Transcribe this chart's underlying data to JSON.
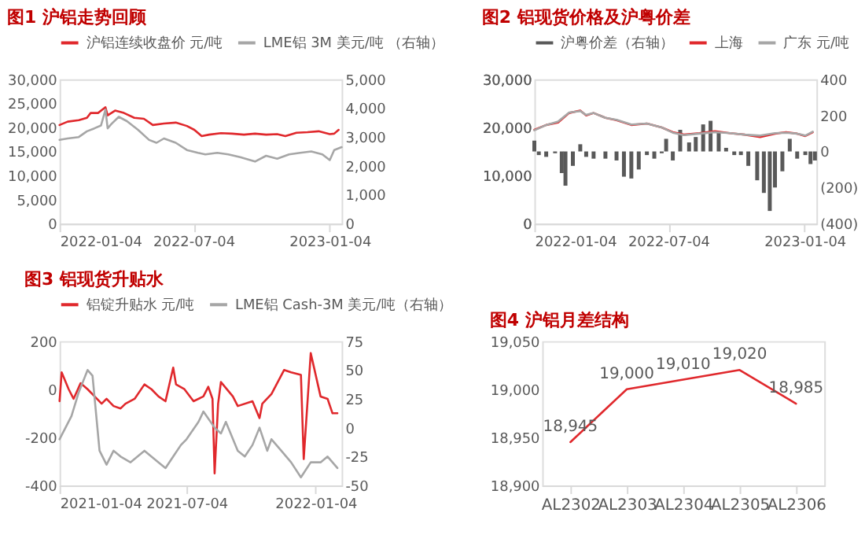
{
  "chart_data": [
    {
      "type": "line",
      "title": "图1  沪铝走势回顾",
      "legend": "top",
      "xlim": [
        "2022-01-04",
        "2023-01-20"
      ],
      "xticks": [
        "2022-01-04",
        "2022-07-04",
        "2023-01-04"
      ],
      "ylim": [
        0,
        30000
      ],
      "yticks": [
        0,
        {
          "value": 5000,
          "label": "5,000"
        },
        {
          "value": 10000,
          "label": "10,000"
        },
        {
          "value": 15000,
          "label": "15,000"
        },
        {
          "value": 20000,
          "label": "20,000"
        },
        {
          "value": 25000,
          "label": "25,000"
        },
        {
          "value": 30000,
          "label": "30,000"
        }
      ],
      "y2lim": [
        0,
        5000
      ],
      "y2ticks": [
        0,
        {
          "value": 1000,
          "label": "1,000"
        },
        {
          "value": 2000,
          "label": "2,000"
        },
        {
          "value": 3000,
          "label": "3,000"
        },
        {
          "value": 4000,
          "label": "4,000"
        },
        {
          "value": 5000,
          "label": "5,000"
        }
      ],
      "series": [
        {
          "name": "沪铝连续收盘价 元/吨",
          "color": "#e0282c",
          "x": [
            "2022-01-04",
            "2022-01-15",
            "2022-01-30",
            "2022-02-10",
            "2022-02-15",
            "2022-02-25",
            "2022-03-07",
            "2022-03-10",
            "2022-03-20",
            "2022-04-01",
            "2022-04-15",
            "2022-04-28",
            "2022-05-10",
            "2022-05-25",
            "2022-06-10",
            "2022-06-25",
            "2022-07-05",
            "2022-07-15",
            "2022-07-25",
            "2022-08-10",
            "2022-08-25",
            "2022-09-10",
            "2022-09-25",
            "2022-10-10",
            "2022-10-25",
            "2022-11-05",
            "2022-11-20",
            "2022-12-05",
            "2022-12-20",
            "2023-01-04",
            "2023-01-10",
            "2023-01-16"
          ],
          "values": [
            20500,
            21200,
            21500,
            22000,
            23000,
            23000,
            24200,
            22500,
            23500,
            23000,
            22000,
            21800,
            20500,
            20800,
            21000,
            20300,
            19500,
            18200,
            18500,
            18800,
            18700,
            18500,
            18700,
            18500,
            18600,
            18200,
            18900,
            19000,
            19200,
            18600,
            18700,
            19500
          ]
        },
        {
          "name": "LME铝 3M 美元/吨 （右轴）",
          "color": "#a6a6a6",
          "axis": "y2",
          "x": [
            "2022-01-04",
            "2022-01-15",
            "2022-01-30",
            "2022-02-10",
            "2022-02-20",
            "2022-03-01",
            "2022-03-07",
            "2022-03-10",
            "2022-03-15",
            "2022-03-25",
            "2022-04-05",
            "2022-04-20",
            "2022-05-05",
            "2022-05-15",
            "2022-05-25",
            "2022-06-10",
            "2022-06-25",
            "2022-07-10",
            "2022-07-20",
            "2022-08-05",
            "2022-08-20",
            "2022-09-05",
            "2022-09-25",
            "2022-10-10",
            "2022-10-25",
            "2022-11-10",
            "2022-11-25",
            "2022-12-10",
            "2022-12-25",
            "2023-01-04",
            "2023-01-10",
            "2023-01-20"
          ],
          "values": [
            2900,
            2950,
            3000,
            3200,
            3300,
            3400,
            3950,
            3300,
            3450,
            3700,
            3550,
            3250,
            2900,
            2800,
            2950,
            2800,
            2550,
            2450,
            2400,
            2450,
            2400,
            2300,
            2150,
            2350,
            2250,
            2400,
            2450,
            2500,
            2400,
            2200,
            2550,
            2650
          ]
        }
      ]
    },
    {
      "type": "line",
      "title": "图2  铝现货价格及沪粤价差",
      "legend": "top",
      "xlim": [
        "2022-01-04",
        "2023-01-20"
      ],
      "xticks": [
        "2022-01-04",
        "2022-07-04",
        "2023-01-04"
      ],
      "ylim": [
        0,
        30000
      ],
      "yticks": [
        0,
        {
          "value": 10000,
          "label": "10,000"
        },
        {
          "value": 20000,
          "label": "20,000"
        },
        {
          "value": 30000,
          "label": "30,000"
        }
      ],
      "y2lim": [
        -400,
        400
      ],
      "y2ticks": [
        {
          "value": -400,
          "label": "(400)"
        },
        {
          "value": -200,
          "label": "(200)"
        },
        0,
        200,
        400
      ],
      "series": [
        {
          "name": "沪粤价差（右轴）",
          "type": "bar",
          "axis": "y2",
          "color": "#595959",
          "x": [
            "2022-01-04",
            "2022-01-10",
            "2022-01-20",
            "2022-02-01",
            "2022-02-10",
            "2022-02-15",
            "2022-02-25",
            "2022-03-07",
            "2022-03-15",
            "2022-03-25",
            "2022-04-10",
            "2022-04-25",
            "2022-05-05",
            "2022-05-15",
            "2022-05-25",
            "2022-06-05",
            "2022-06-15",
            "2022-06-25",
            "2022-07-01",
            "2022-07-10",
            "2022-07-20",
            "2022-08-01",
            "2022-08-10",
            "2022-08-20",
            "2022-08-30",
            "2022-09-10",
            "2022-09-20",
            "2022-10-01",
            "2022-10-10",
            "2022-10-20",
            "2022-11-01",
            "2022-11-10",
            "2022-11-18",
            "2022-11-25",
            "2022-12-05",
            "2022-12-15",
            "2022-12-25",
            "2023-01-05",
            "2023-01-12",
            "2023-01-18"
          ],
          "values": [
            60,
            -20,
            -30,
            -10,
            -120,
            -190,
            -80,
            40,
            -30,
            -40,
            -40,
            -50,
            -140,
            -150,
            -100,
            -20,
            -40,
            -10,
            70,
            -50,
            120,
            50,
            80,
            150,
            170,
            110,
            20,
            -20,
            -20,
            -80,
            -160,
            -230,
            -330,
            -200,
            -110,
            70,
            -40,
            -20,
            -70,
            -50
          ]
        },
        {
          "name": "上海",
          "color": "#e0282c",
          "x": [
            "2022-01-04",
            "2022-01-20",
            "2022-02-05",
            "2022-02-20",
            "2022-03-07",
            "2022-03-15",
            "2022-03-25",
            "2022-04-10",
            "2022-04-25",
            "2022-05-15",
            "2022-06-05",
            "2022-06-25",
            "2022-07-10",
            "2022-07-25",
            "2022-08-15",
            "2022-09-05",
            "2022-09-25",
            "2022-10-15",
            "2022-11-05",
            "2022-11-25",
            "2022-12-10",
            "2022-12-25",
            "2023-01-05",
            "2023-01-15"
          ],
          "values": [
            19500,
            20500,
            21000,
            23000,
            23500,
            22500,
            23000,
            22000,
            21500,
            20500,
            20800,
            20000,
            19000,
            18500,
            18800,
            19200,
            18800,
            18500,
            18000,
            18700,
            19000,
            18700,
            18200,
            19000
          ]
        },
        {
          "name": "广东 元/吨",
          "color": "#a6a6a6",
          "x": [
            "2022-01-04",
            "2022-01-20",
            "2022-02-05",
            "2022-02-20",
            "2022-03-07",
            "2022-03-15",
            "2022-03-25",
            "2022-04-10",
            "2022-04-25",
            "2022-05-15",
            "2022-06-05",
            "2022-06-25",
            "2022-07-10",
            "2022-07-25",
            "2022-08-15",
            "2022-09-05",
            "2022-09-25",
            "2022-10-15",
            "2022-11-05",
            "2022-11-25",
            "2022-12-10",
            "2022-12-25",
            "2023-01-05",
            "2023-01-15"
          ],
          "values": [
            19400,
            20500,
            21200,
            23100,
            23400,
            22600,
            23000,
            22000,
            21600,
            20600,
            20800,
            20000,
            18900,
            18400,
            18700,
            19000,
            18800,
            18500,
            18300,
            18800,
            18900,
            18700,
            18300,
            19100
          ]
        }
      ]
    },
    {
      "type": "line",
      "title": "图3  铝现货升贴水",
      "legend": "top",
      "xlim": [
        "2021-01-04",
        "2022-02-10"
      ],
      "xticks": [
        "2021-01-04",
        "2021-07-04",
        "2022-01-04"
      ],
      "ylim": [
        -400,
        200
      ],
      "yticks": [
        -400,
        -200,
        0,
        200
      ],
      "y2lim": [
        -50,
        75
      ],
      "y2ticks": [
        -50,
        -25,
        0,
        25,
        50,
        75
      ],
      "series": [
        {
          "name": "铝锭升贴水 元/吨",
          "color": "#e0282c",
          "x": [
            "2021-01-04",
            "2021-01-07",
            "2021-01-17",
            "2021-01-24",
            "2021-02-03",
            "2021-02-13",
            "2021-02-23",
            "2021-03-05",
            "2021-03-12",
            "2021-03-22",
            "2021-04-01",
            "2021-04-08",
            "2021-04-21",
            "2021-05-05",
            "2021-05-15",
            "2021-05-25",
            "2021-06-04",
            "2021-06-15",
            "2021-06-19",
            "2021-07-01",
            "2021-07-14",
            "2021-07-28",
            "2021-08-04",
            "2021-08-10",
            "2021-08-13",
            "2021-08-18",
            "2021-08-22",
            "2021-09-08",
            "2021-09-15",
            "2021-10-06",
            "2021-10-16",
            "2021-10-20",
            "2021-11-02",
            "2021-11-20",
            "2021-11-30",
            "2021-12-14",
            "2021-12-18",
            "2021-12-28",
            "2022-01-11",
            "2022-01-21",
            "2022-01-28",
            "2022-02-04"
          ],
          "values": [
            -50,
            70,
            0,
            -40,
            25,
            0,
            -30,
            -60,
            -40,
            -70,
            -80,
            -60,
            -40,
            20,
            0,
            -30,
            -50,
            90,
            20,
            0,
            -50,
            -30,
            10,
            -40,
            -350,
            -60,
            30,
            -30,
            -70,
            -50,
            -120,
            -60,
            -20,
            80,
            70,
            60,
            -290,
            150,
            -30,
            -40,
            -100,
            -100
          ]
        },
        {
          "name": "LME铝 Cash-3M 美元/吨（右轴）",
          "color": "#a6a6a6",
          "axis": "y2",
          "x": [
            "2021-01-04",
            "2021-01-21",
            "2021-01-31",
            "2021-02-13",
            "2021-02-20",
            "2021-03-02",
            "2021-03-12",
            "2021-03-22",
            "2021-04-01",
            "2021-04-15",
            "2021-05-05",
            "2021-05-25",
            "2021-06-04",
            "2021-06-15",
            "2021-06-26",
            "2021-07-04",
            "2021-07-21",
            "2021-07-28",
            "2021-08-13",
            "2021-08-22",
            "2021-08-29",
            "2021-09-15",
            "2021-09-25",
            "2021-10-06",
            "2021-10-16",
            "2021-10-27",
            "2021-11-02",
            "2021-11-16",
            "2021-11-30",
            "2021-12-14",
            "2021-12-28",
            "2022-01-11",
            "2022-01-21",
            "2022-02-04"
          ],
          "values": [
            -10,
            10,
            30,
            50,
            45,
            -20,
            -32,
            -20,
            -25,
            -30,
            -20,
            -30,
            -35,
            -25,
            -15,
            -10,
            5,
            14,
            0,
            -5,
            5,
            -20,
            -25,
            -15,
            0,
            -20,
            -10,
            -20,
            -30,
            -43,
            -30,
            -30,
            -25,
            -35
          ]
        }
      ]
    },
    {
      "type": "line",
      "title": "图4  沪铝月差结构",
      "categories": [
        "AL2302",
        "AL2303",
        "AL2304",
        "AL2305",
        "AL2306"
      ],
      "ylim": [
        18900,
        19050
      ],
      "yticks": [
        {
          "value": 18900,
          "label": "18,900"
        },
        {
          "value": 18950,
          "label": "18,950"
        },
        {
          "value": 19000,
          "label": "19,000"
        },
        {
          "value": 19050,
          "label": "19,050"
        }
      ],
      "series": [
        {
          "color": "#e0282c",
          "values": [
            18945,
            19000,
            19010,
            19020,
            18985
          ],
          "value_labels": [
            "18,945",
            "19,000",
            "19,010",
            "19,020",
            "18,985"
          ]
        }
      ]
    }
  ]
}
